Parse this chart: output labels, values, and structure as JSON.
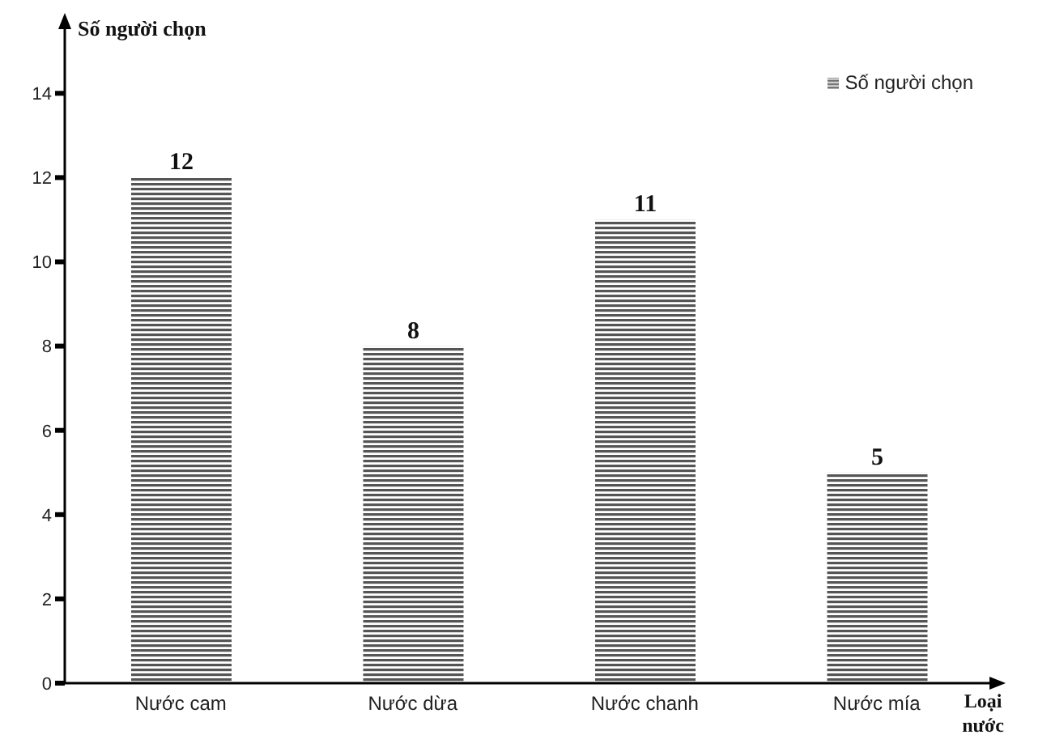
{
  "chart_data": {
    "type": "bar",
    "ylabel": "Số người chọn",
    "xlabel": "Loại nước",
    "categories": [
      "Nước cam",
      "Nước dừa",
      "Nước chanh",
      "Nước mía"
    ],
    "series": [
      {
        "name": "Số người chọn",
        "color": "#555555",
        "values": [
          12,
          8,
          11,
          5
        ]
      }
    ],
    "ylim": [
      0,
      15.6
    ],
    "yticks": [
      0,
      2,
      4,
      6,
      8,
      10,
      12,
      14
    ],
    "grid": false,
    "legend": "top right",
    "data_labels": true
  }
}
